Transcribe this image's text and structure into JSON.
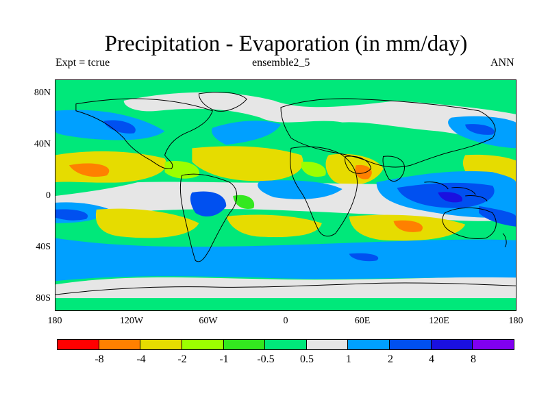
{
  "title": "Precipitation - Evaporation (in mm/day)",
  "subtitle_left": "Expt = tcrue",
  "subtitle_center": "ensemble2_5",
  "subtitle_right": "ANN",
  "lat_labels": [
    "80N",
    "40N",
    "0",
    "40S",
    "80S"
  ],
  "lon_labels": [
    "180",
    "120W",
    "60W",
    "0",
    "60E",
    "120E",
    "180"
  ],
  "colorbar": {
    "colors": [
      "#ff0000",
      "#ff8000",
      "#e6dc00",
      "#9cff00",
      "#33e81f",
      "#00e87a",
      "#e6e6e6",
      "#00a0ff",
      "#0050f0",
      "#1a10e0",
      "#8000f0"
    ],
    "labels": [
      "-8",
      "-4",
      "-2",
      "-1",
      "-0.5",
      "0.5",
      "1",
      "2",
      "4",
      "8"
    ]
  },
  "legend_tiers": {
    "strong_dry": "#ff8000",
    "dry": "#e6dc00",
    "mild_dry": "#9cff00",
    "slight_dry": "#33e81f",
    "neutral": "#00e87a",
    "slight_wet": "#e6e6e6",
    "wet": "#00a0ff",
    "strong_wet": "#0050f0",
    "very_wet": "#1a10e0"
  }
}
